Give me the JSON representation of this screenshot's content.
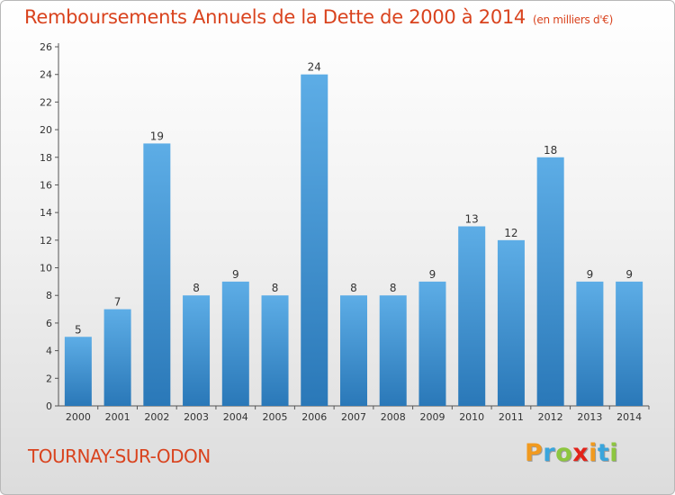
{
  "header": {
    "title": "Remboursements Annuels de la Dette de 2000 à 2014",
    "unit": "(en milliers d'€)"
  },
  "footer": {
    "commune": "TOURNAY-SUR-ODON",
    "brand": [
      "P",
      "r",
      "o",
      "x",
      "i",
      "t",
      "i"
    ],
    "brand_colors": [
      "#f19a1f",
      "#3aa5dc",
      "#8dc63f",
      "#e2231a",
      "#f19a1f",
      "#3aa5dc",
      "#8dc63f"
    ]
  },
  "colors": {
    "title": "#d9431e",
    "bar_light": "#5dade6",
    "bar_dark": "#2a78b8",
    "grid": "#b9b9b9",
    "text": "#333333"
  },
  "chart_data": {
    "type": "bar",
    "title": "Remboursements Annuels de la Dette de 2000 à 2014",
    "xlabel": "",
    "ylabel": "",
    "categories": [
      "2000",
      "2001",
      "2002",
      "2003",
      "2004",
      "2005",
      "2006",
      "2007",
      "2008",
      "2009",
      "2010",
      "2011",
      "2012",
      "2013",
      "2014"
    ],
    "values": [
      5,
      7,
      19,
      8,
      9,
      8,
      24,
      8,
      8,
      9,
      13,
      12,
      18,
      9,
      9
    ],
    "ylim": [
      0,
      26
    ],
    "yticks": [
      0,
      2,
      4,
      6,
      8,
      10,
      12,
      14,
      16,
      18,
      20,
      22,
      24,
      26
    ],
    "grid": false
  }
}
